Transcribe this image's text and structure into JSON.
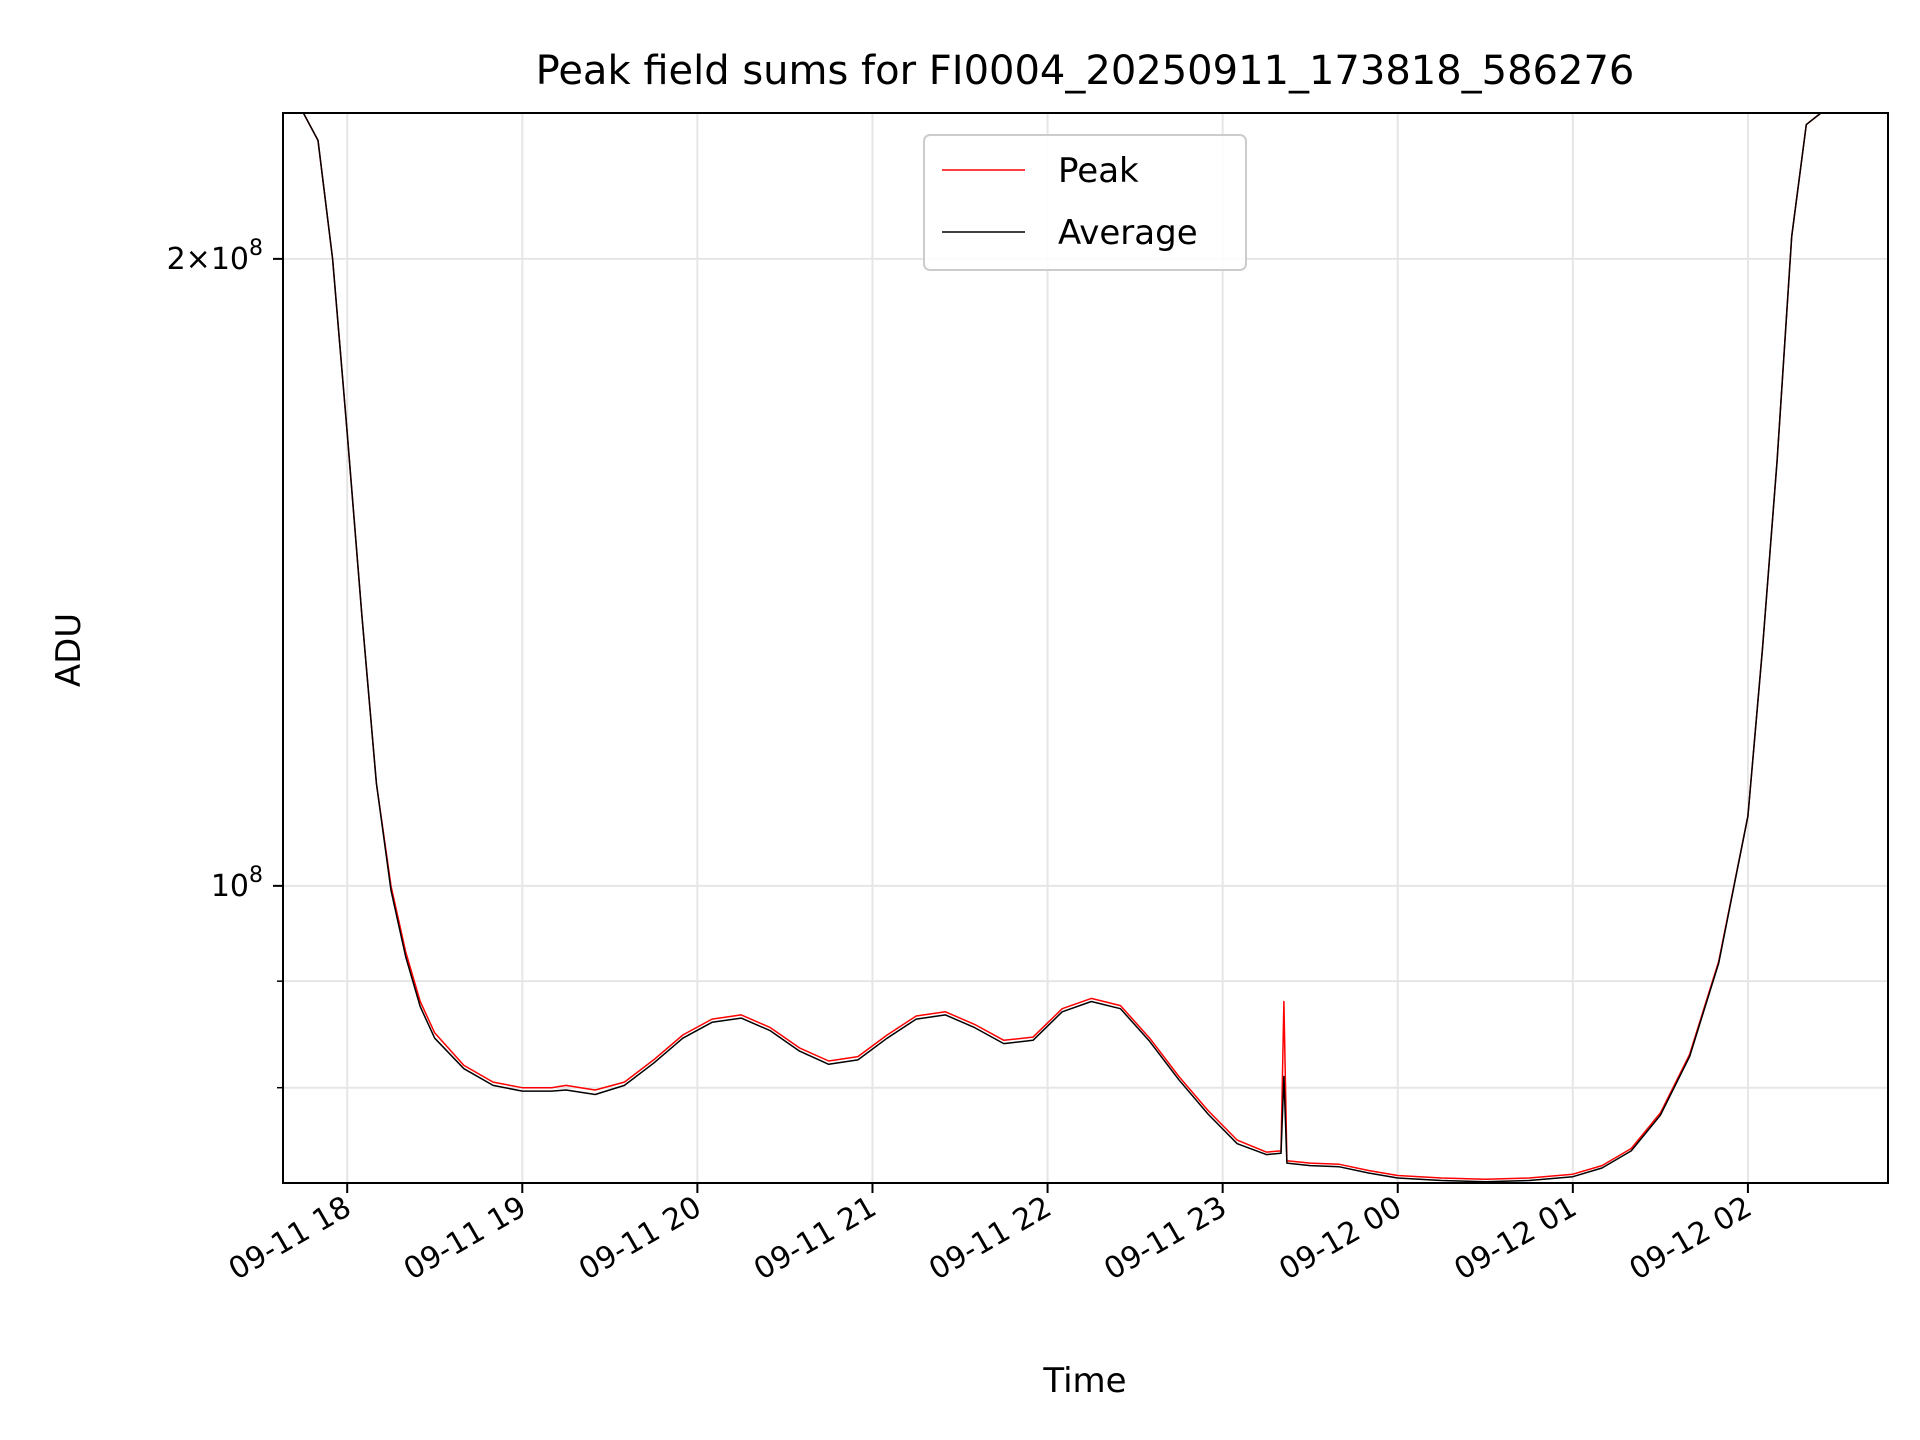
{
  "chart_data": {
    "type": "line",
    "title": "Peak field sums for FI0004_20250911_173818_586276",
    "xlabel": "Time",
    "ylabel": "ADU",
    "y_scale": "log",
    "xlim": [
      "2025-09-11 17:38",
      "2025-09-12 02:48"
    ],
    "ylim": [
      72000000,
      235000000
    ],
    "grid": true,
    "legend_position": "upper center",
    "x_ticks": [
      {
        "value": "2025-09-11 18:00",
        "label": "09-11 18"
      },
      {
        "value": "2025-09-11 19:00",
        "label": "09-11 19"
      },
      {
        "value": "2025-09-11 20:00",
        "label": "09-11 20"
      },
      {
        "value": "2025-09-11 21:00",
        "label": "09-11 21"
      },
      {
        "value": "2025-09-11 22:00",
        "label": "09-11 22"
      },
      {
        "value": "2025-09-11 23:00",
        "label": "09-11 23"
      },
      {
        "value": "2025-09-12 00:00",
        "label": "09-12 00"
      },
      {
        "value": "2025-09-12 01:00",
        "label": "09-12 01"
      },
      {
        "value": "2025-09-12 02:00",
        "label": "09-12 02"
      }
    ],
    "y_major_ticks": [
      {
        "value": 100000000,
        "base": "10",
        "exponent": "8",
        "mantissa": ""
      },
      {
        "value": 200000000,
        "base": "10",
        "exponent": "8",
        "mantissa": "2"
      }
    ],
    "y_minor_ticks": [
      80000000,
      90000000
    ],
    "series": [
      {
        "name": "Peak",
        "color": "#ff0000",
        "x": [
          "2025-09-11 17:38",
          "2025-09-11 17:45",
          "2025-09-11 17:50",
          "2025-09-11 17:55",
          "2025-09-11 18:00",
          "2025-09-11 18:05",
          "2025-09-11 18:10",
          "2025-09-11 18:15",
          "2025-09-11 18:20",
          "2025-09-11 18:25",
          "2025-09-11 18:30",
          "2025-09-11 18:40",
          "2025-09-11 18:50",
          "2025-09-11 19:00",
          "2025-09-11 19:10",
          "2025-09-11 19:15",
          "2025-09-11 19:20",
          "2025-09-11 19:25",
          "2025-09-11 19:35",
          "2025-09-11 19:45",
          "2025-09-11 19:55",
          "2025-09-11 20:05",
          "2025-09-11 20:15",
          "2025-09-11 20:25",
          "2025-09-11 20:35",
          "2025-09-11 20:45",
          "2025-09-11 20:55",
          "2025-09-11 21:05",
          "2025-09-11 21:15",
          "2025-09-11 21:25",
          "2025-09-11 21:35",
          "2025-09-11 21:45",
          "2025-09-11 21:55",
          "2025-09-11 22:05",
          "2025-09-11 22:15",
          "2025-09-11 22:25",
          "2025-09-11 22:35",
          "2025-09-11 22:45",
          "2025-09-11 22:55",
          "2025-09-11 23:05",
          "2025-09-11 23:15",
          "2025-09-11 23:20",
          "2025-09-11 23:21",
          "2025-09-11 23:22",
          "2025-09-11 23:30",
          "2025-09-11 23:40",
          "2025-09-11 23:50",
          "2025-09-12 00:00",
          "2025-09-12 00:15",
          "2025-09-12 00:30",
          "2025-09-12 00:45",
          "2025-09-12 01:00",
          "2025-09-12 01:10",
          "2025-09-12 01:20",
          "2025-09-12 01:30",
          "2025-09-12 01:40",
          "2025-09-12 01:50",
          "2025-09-12 02:00",
          "2025-09-12 02:05",
          "2025-09-12 02:10",
          "2025-09-12 02:15",
          "2025-09-12 02:20",
          "2025-09-12 02:25",
          "2025-09-12 02:30"
        ],
        "values": [
          235000000,
          235000000,
          228000000,
          200000000,
          165000000,
          135000000,
          112000000,
          100000000,
          93000000,
          88000000,
          85000000,
          82000000,
          80500000,
          80000000,
          80000000,
          80200000,
          80000000,
          79800000,
          80500000,
          82500000,
          84800000,
          86300000,
          86700000,
          85500000,
          83600000,
          82400000,
          82800000,
          84800000,
          86600000,
          87000000,
          85800000,
          84300000,
          84600000,
          87300000,
          88300000,
          87600000,
          84500000,
          81000000,
          78000000,
          75500000,
          74500000,
          74600000,
          88000000,
          73800000,
          73600000,
          73500000,
          73000000,
          72600000,
          72400000,
          72300000,
          72400000,
          72700000,
          73400000,
          74800000,
          77800000,
          83000000,
          92000000,
          108000000,
          130000000,
          160000000,
          205000000,
          232000000,
          235000000,
          235000000
        ]
      },
      {
        "name": "Average",
        "color": "#000000",
        "x": [
          "2025-09-11 17:38",
          "2025-09-11 17:45",
          "2025-09-11 17:50",
          "2025-09-11 17:55",
          "2025-09-11 18:00",
          "2025-09-11 18:05",
          "2025-09-11 18:10",
          "2025-09-11 18:15",
          "2025-09-11 18:20",
          "2025-09-11 18:25",
          "2025-09-11 18:30",
          "2025-09-11 18:40",
          "2025-09-11 18:50",
          "2025-09-11 19:00",
          "2025-09-11 19:10",
          "2025-09-11 19:15",
          "2025-09-11 19:20",
          "2025-09-11 19:25",
          "2025-09-11 19:35",
          "2025-09-11 19:45",
          "2025-09-11 19:55",
          "2025-09-11 20:05",
          "2025-09-11 20:15",
          "2025-09-11 20:25",
          "2025-09-11 20:35",
          "2025-09-11 20:45",
          "2025-09-11 20:55",
          "2025-09-11 21:05",
          "2025-09-11 21:15",
          "2025-09-11 21:25",
          "2025-09-11 21:35",
          "2025-09-11 21:45",
          "2025-09-11 21:55",
          "2025-09-11 22:05",
          "2025-09-11 22:15",
          "2025-09-11 22:25",
          "2025-09-11 22:35",
          "2025-09-11 22:45",
          "2025-09-11 22:55",
          "2025-09-11 23:05",
          "2025-09-11 23:15",
          "2025-09-11 23:20",
          "2025-09-11 23:21",
          "2025-09-11 23:22",
          "2025-09-11 23:30",
          "2025-09-11 23:40",
          "2025-09-11 23:50",
          "2025-09-12 00:00",
          "2025-09-12 00:15",
          "2025-09-12 00:30",
          "2025-09-12 00:45",
          "2025-09-12 01:00",
          "2025-09-12 01:10",
          "2025-09-12 01:20",
          "2025-09-12 01:30",
          "2025-09-12 01:40",
          "2025-09-12 01:50",
          "2025-09-12 02:00",
          "2025-09-12 02:05",
          "2025-09-12 02:10",
          "2025-09-12 02:15",
          "2025-09-12 02:20",
          "2025-09-12 02:25",
          "2025-09-12 02:30"
        ],
        "values": [
          235000000,
          235000000,
          228000000,
          200000000,
          165000000,
          135000000,
          112000000,
          99500000,
          92500000,
          87500000,
          84500000,
          81700000,
          80200000,
          79700000,
          79700000,
          79800000,
          79600000,
          79400000,
          80200000,
          82200000,
          84500000,
          86000000,
          86400000,
          85200000,
          83300000,
          82100000,
          82500000,
          84500000,
          86300000,
          86700000,
          85500000,
          84000000,
          84300000,
          87000000,
          88000000,
          87300000,
          84200000,
          80700000,
          77700000,
          75200000,
          74300000,
          74400000,
          81000000,
          73600000,
          73400000,
          73300000,
          72800000,
          72400000,
          72200000,
          72100000,
          72200000,
          72500000,
          73200000,
          74600000,
          77600000,
          82800000,
          91800000,
          108000000,
          130000000,
          160000000,
          205000000,
          232000000,
          235000000,
          235000000
        ]
      }
    ]
  }
}
